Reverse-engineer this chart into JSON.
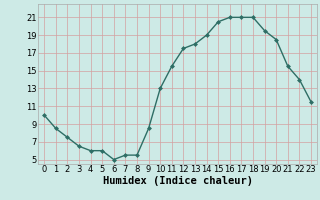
{
  "x": [
    0,
    1,
    2,
    3,
    4,
    5,
    6,
    7,
    8,
    9,
    10,
    11,
    12,
    13,
    14,
    15,
    16,
    17,
    18,
    19,
    20,
    21,
    22,
    23
  ],
  "y": [
    10.0,
    8.5,
    7.5,
    6.5,
    6.0,
    6.0,
    5.0,
    5.5,
    5.5,
    8.5,
    13.0,
    15.5,
    17.5,
    18.0,
    19.0,
    20.5,
    21.0,
    21.0,
    21.0,
    19.5,
    18.5,
    15.5,
    14.0,
    11.5
  ],
  "line_color": "#2e6e65",
  "marker_color": "#2e6e65",
  "bg_color": "#cdeae6",
  "grid_color": "#b8d8d4",
  "grid_minor_color": "#d0e8e4",
  "xlabel": "Humidex (Indice chaleur)",
  "xlabel_fontsize": 7.5,
  "ylabel_ticks": [
    5,
    7,
    9,
    11,
    13,
    15,
    17,
    19,
    21
  ],
  "xlim": [
    -0.5,
    23.5
  ],
  "ylim": [
    4.5,
    22.5
  ],
  "xtick_labels": [
    "0",
    "1",
    "2",
    "3",
    "4",
    "5",
    "6",
    "7",
    "8",
    "9",
    "10",
    "11",
    "12",
    "13",
    "14",
    "15",
    "16",
    "17",
    "18",
    "19",
    "20",
    "21",
    "22",
    "23"
  ],
  "tick_fontsize": 6.0,
  "marker_size": 2.5,
  "line_width": 1.0
}
